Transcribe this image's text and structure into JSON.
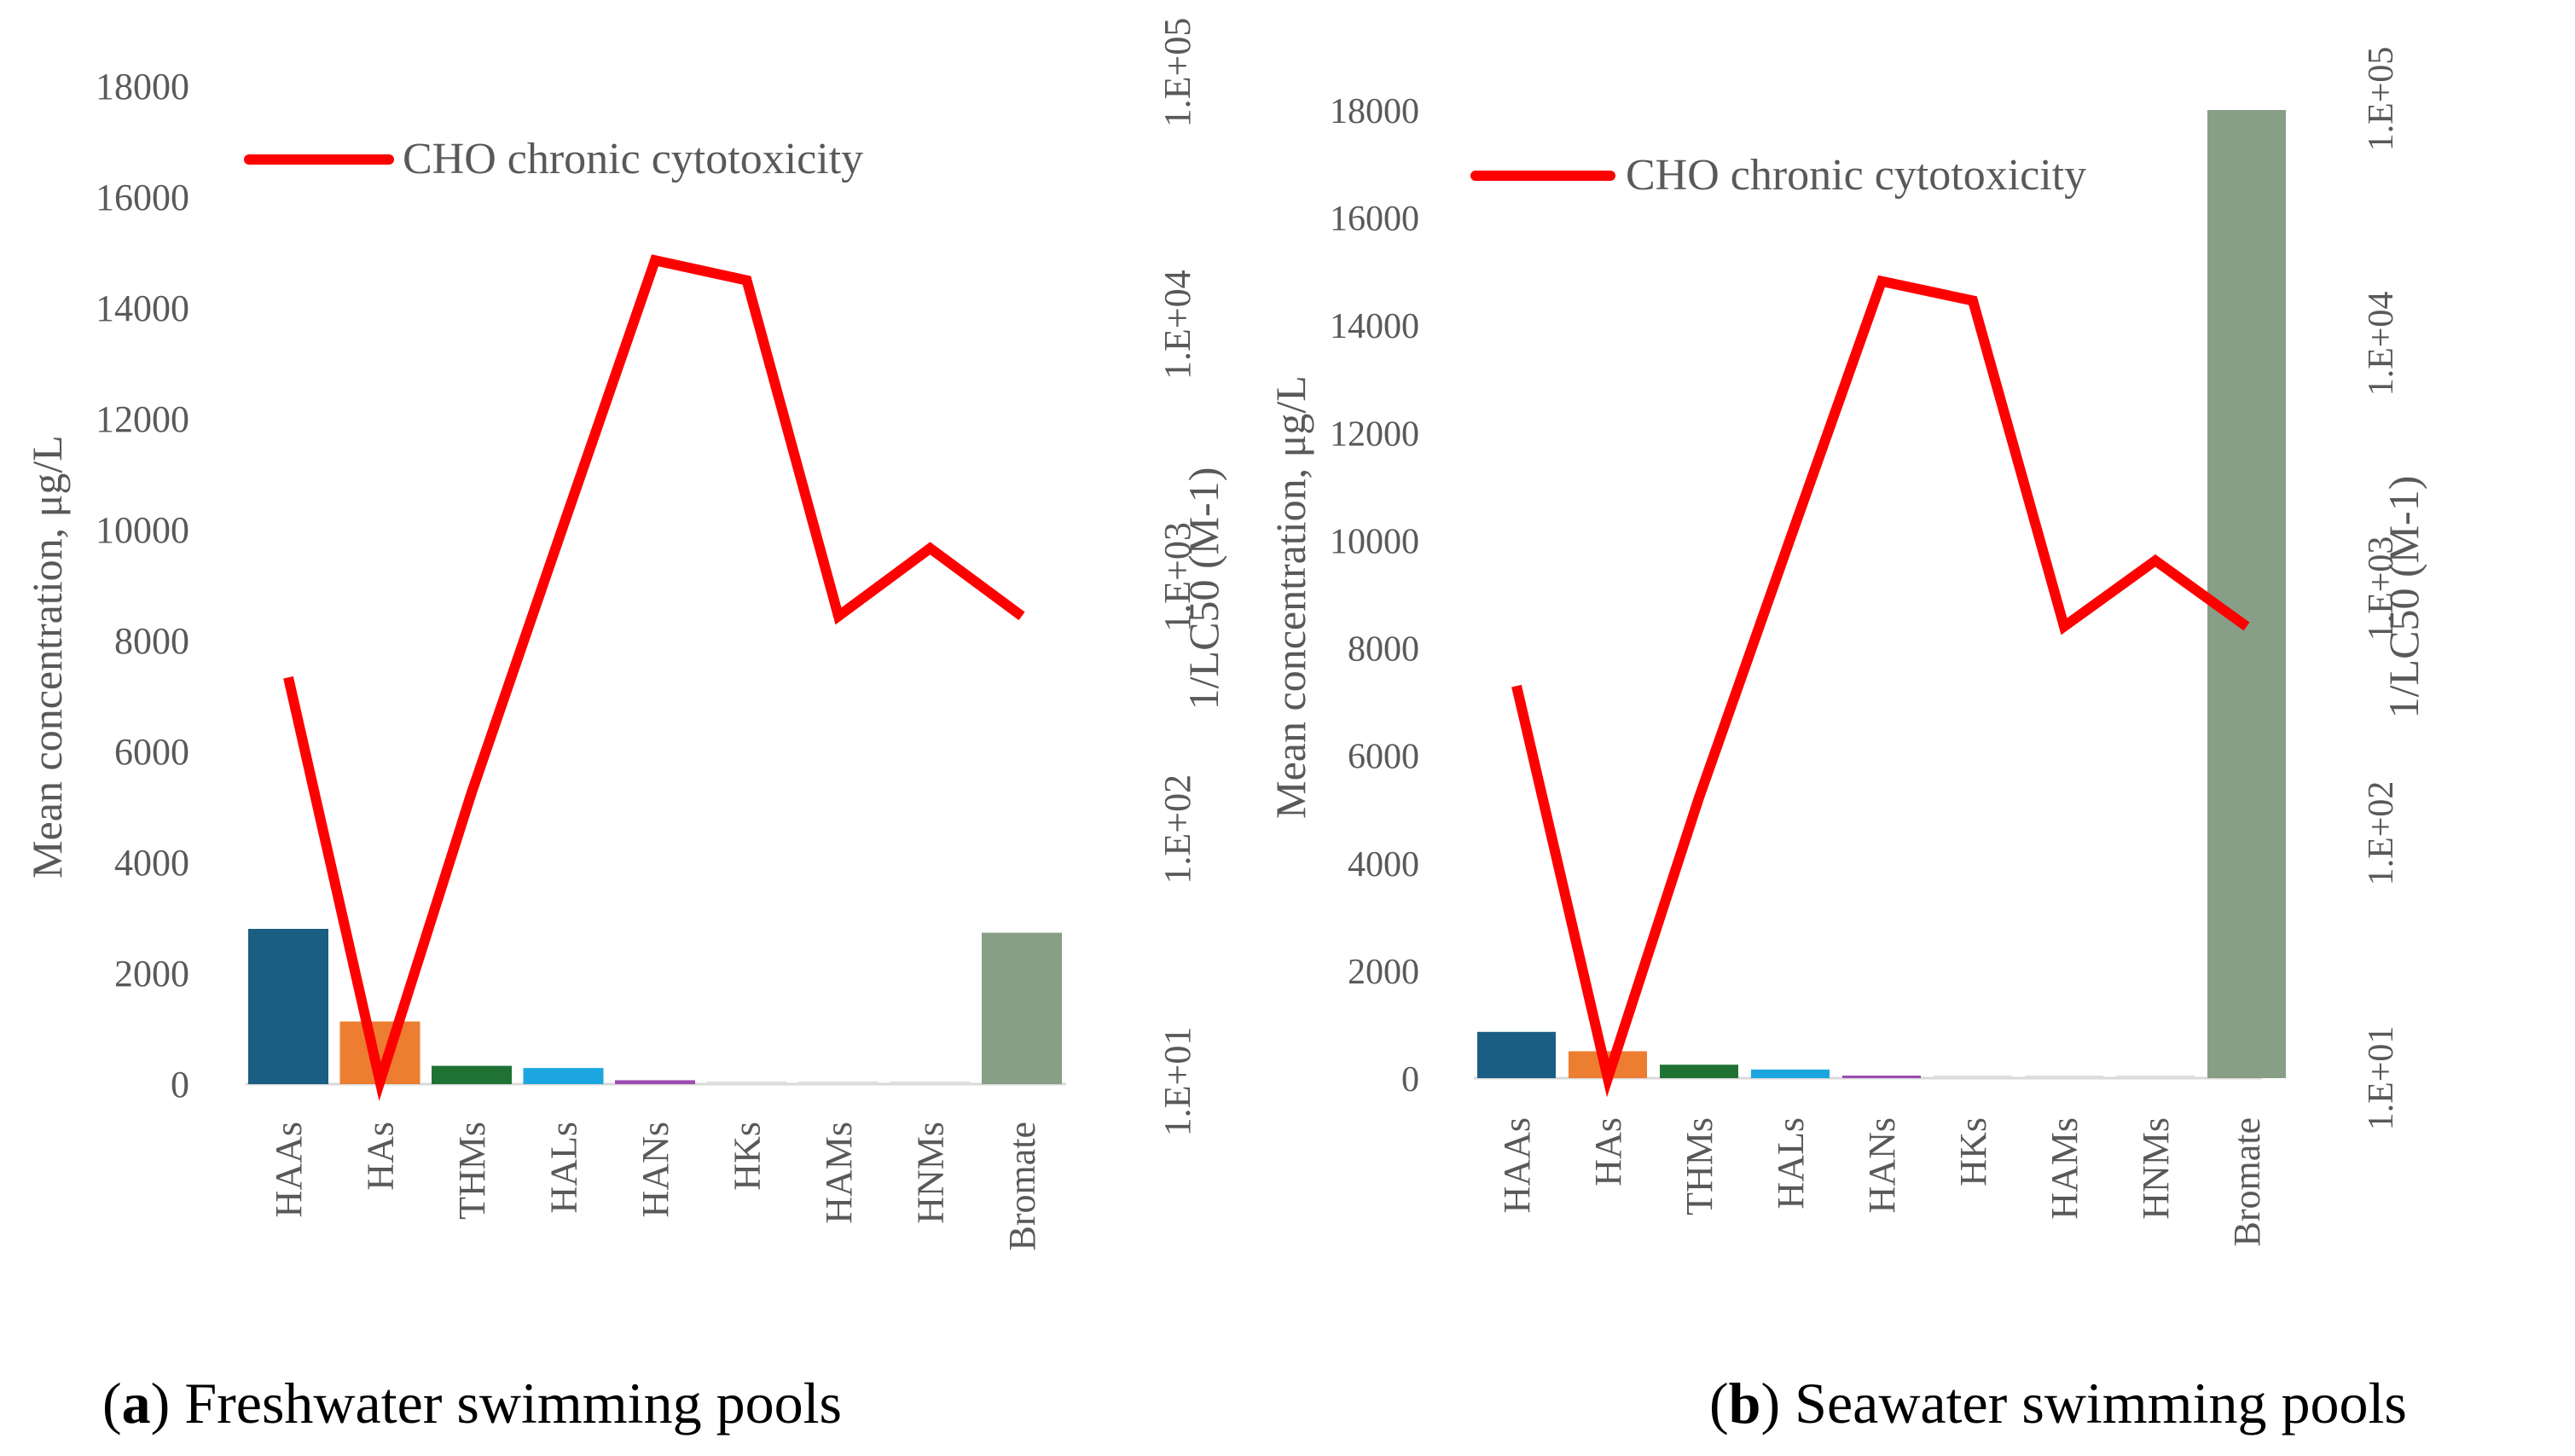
{
  "figure": {
    "captions": [
      {
        "letter": "a",
        "text": "Freshwater swimming pools"
      },
      {
        "letter": "b",
        "text": "Seawater swimming pools"
      }
    ]
  },
  "chart_data": [
    {
      "type": "bar",
      "title": "",
      "categories": [
        "HAAs",
        "HAs",
        "THMs",
        "HALs",
        "HANs",
        "HKs",
        "HAMs",
        "HNMs",
        "Bromate"
      ],
      "series": [
        {
          "name": "Mean concentration",
          "axis": "left",
          "values": [
            2800,
            1130,
            330,
            290,
            70,
            15,
            10,
            10,
            2730
          ],
          "colors": [
            "#1a5e83",
            "#ed7d31",
            "#1f7234",
            "#1ca6df",
            "#9c4bb0",
            "#dddddd",
            "#dddddd",
            "#dddddd",
            "#879f87"
          ]
        },
        {
          "name": "CHO chronic cytotoxicity",
          "type": "line",
          "axis": "right",
          "color": "#ff0000",
          "values": [
            400,
            10,
            140,
            1600,
            18000,
            15000,
            700,
            1300,
            700
          ]
        }
      ],
      "ylabel": "Mean concentration, μg/L",
      "ylim": [
        0,
        18000
      ],
      "yticks": [
        "0",
        "2000",
        "4000",
        "6000",
        "8000",
        "10000",
        "12000",
        "14000",
        "16000",
        "18000"
      ],
      "y2label": "1/LC50 (M-1)",
      "y2scale": "log",
      "y2lim": [
        10,
        100000
      ],
      "y2ticks": [
        "1.E+01",
        "1.E+02",
        "1.E+03",
        "1.E+04",
        "1.E+05"
      ],
      "legend": {
        "position": "top-left",
        "entries": [
          "CHO chronic cytotoxicity"
        ]
      }
    },
    {
      "type": "bar",
      "title": "",
      "categories": [
        "HAAs",
        "HAs",
        "THMs",
        "HALs",
        "HANs",
        "HKs",
        "HAMs",
        "HNMs",
        "Bromate"
      ],
      "series": [
        {
          "name": "Mean concentration",
          "axis": "left",
          "values": [
            860,
            500,
            250,
            160,
            25,
            15,
            10,
            10,
            18000
          ],
          "colors": [
            "#1a5e83",
            "#ed7d31",
            "#1f7234",
            "#1ca6df",
            "#9c4bb0",
            "#dddddd",
            "#dddddd",
            "#dddddd",
            "#879f87"
          ]
        },
        {
          "name": "CHO chronic cytotoxicity",
          "type": "line",
          "axis": "right",
          "color": "#ff0000",
          "values": [
            400,
            10,
            140,
            1600,
            18000,
            15000,
            700,
            1300,
            700
          ]
        }
      ],
      "ylabel": "Mean concentration, μg/L",
      "ylim": [
        0,
        18000
      ],
      "yticks": [
        "0",
        "2000",
        "4000",
        "6000",
        "8000",
        "10000",
        "12000",
        "14000",
        "16000",
        "18000"
      ],
      "y2label": "1/LC50 (M-1)",
      "y2scale": "log",
      "y2lim": [
        10,
        100000
      ],
      "y2ticks": [
        "1.E+01",
        "1.E+02",
        "1.E+03",
        "1.E+04",
        "1.E+05"
      ],
      "legend": {
        "position": "top-left",
        "entries": [
          "CHO chronic cytotoxicity"
        ]
      }
    }
  ]
}
